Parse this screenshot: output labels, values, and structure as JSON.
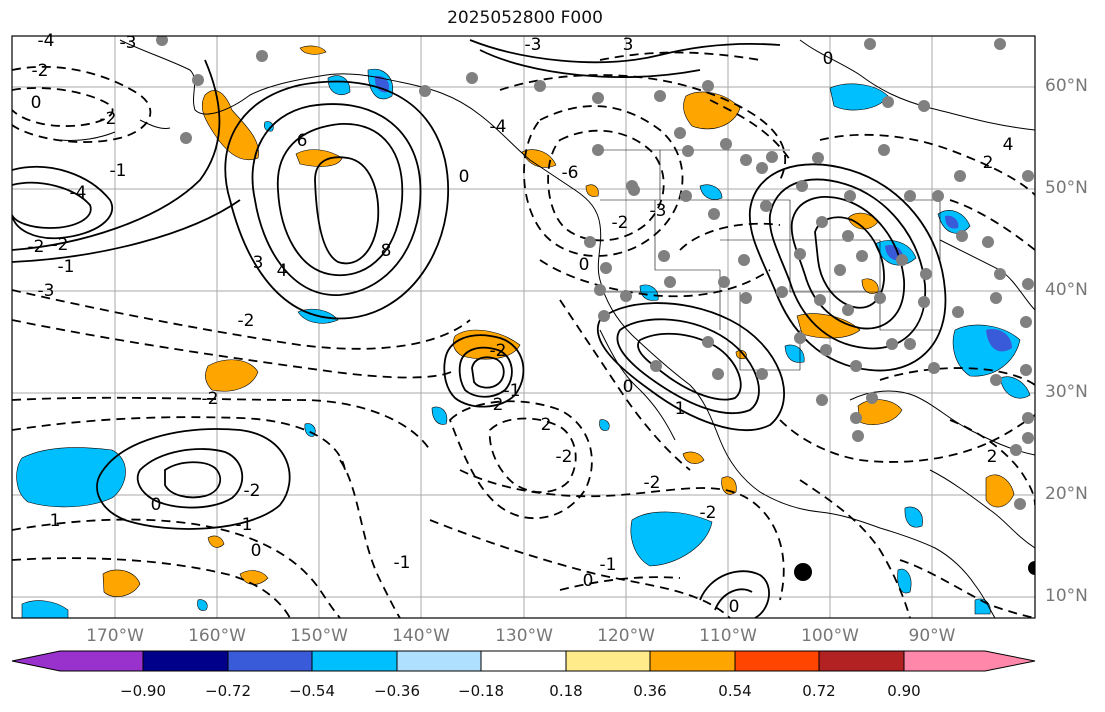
{
  "title": "2025052800 F000",
  "lat_labels": [
    "60°N",
    "50°N",
    "40°N",
    "30°N",
    "20°N",
    "10°N"
  ],
  "lon_labels": [
    "170°W",
    "160°W",
    "150°W",
    "140°W",
    "130°W",
    "120°W",
    "110°W",
    "100°W",
    "90°W"
  ],
  "contour_labels": [
    "-4",
    "-3",
    "-3",
    "-2",
    "0",
    "-2",
    "6",
    "-6",
    "-4",
    "-4",
    "8",
    "3",
    "-2",
    "-1",
    "4",
    "-2",
    "-1",
    "-3",
    "-3",
    "3",
    "-2",
    "-2",
    "0",
    "0",
    "-2",
    "-2",
    "-1",
    "2",
    "1",
    "0",
    "-2",
    "-1",
    "0",
    "-1",
    "0",
    "-1",
    "0",
    "-2",
    "0",
    "1",
    "2",
    "-2",
    "-2",
    "2",
    "2",
    "0",
    "4"
  ],
  "colorbar": {
    "ticks": [
      "−0.90",
      "−0.72",
      "−0.54",
      "−0.36",
      "−0.18",
      "0.18",
      "0.36",
      "0.54",
      "0.72",
      "0.90"
    ],
    "colors": [
      "#9932cc",
      "#00008b",
      "#3a5bd9",
      "#00bfff",
      "#b0e0ff",
      "#ffffff",
      "#ffeb8a",
      "#ffa500",
      "#ff4500",
      "#b22222",
      "#ff88aa"
    ]
  },
  "colors": {
    "positive_shade": "#ffa500",
    "negative_shade": "#00bfff",
    "negative_deep": "#3a5bd9",
    "grid": "#aaaaaa",
    "dots": "#808080"
  }
}
